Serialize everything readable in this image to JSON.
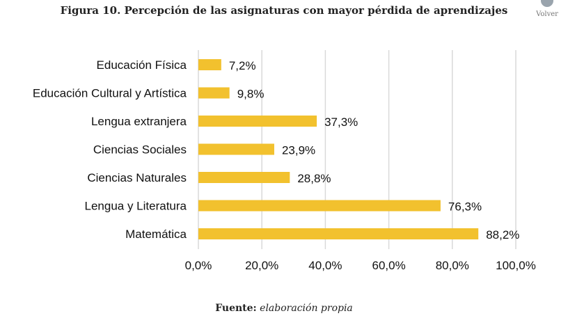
{
  "title": "Figura 10. Percepción de las asignaturas con mayor pérdida de aprendizajes",
  "volver": "Volver",
  "source": {
    "label": "Fuente:",
    "text": "elaboración propia"
  },
  "colors": {
    "bar": "#F2C12E",
    "grid": "#D9D9D9"
  },
  "chart_data": {
    "type": "bar",
    "orientation": "horizontal",
    "categories": [
      "Educación Física",
      "Educación Cultural y Artística",
      "Lengua extranjera",
      "Ciencias Sociales",
      "Ciencias Naturales",
      "Lengua y Literatura",
      "Matemática"
    ],
    "values": [
      7.2,
      9.8,
      37.3,
      23.9,
      28.8,
      76.3,
      88.2
    ],
    "value_labels": [
      "7,2%",
      "9,8%",
      "37,3%",
      "23,9%",
      "28,8%",
      "76,3%",
      "88,2%"
    ],
    "xticks": [
      0,
      20,
      40,
      60,
      80,
      100
    ],
    "xtick_labels": [
      "0,0%",
      "20,0%",
      "40,0%",
      "60,0%",
      "80,0%",
      "100,0%"
    ],
    "xlim": [
      0,
      100
    ],
    "grid": true
  }
}
